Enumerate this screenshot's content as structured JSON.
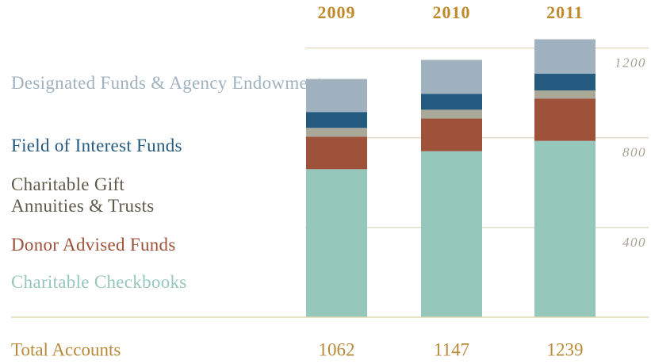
{
  "chart_data": {
    "type": "stacked_bar",
    "categories": [
      "2009",
      "2010",
      "2011"
    ],
    "series": [
      {
        "name": "Charitable Checkbooks",
        "color": "#96c7bb",
        "values": [
          660,
          740,
          786
        ]
      },
      {
        "name": "Donor Advised Funds",
        "color": "#9e5239",
        "values": [
          145,
          146,
          189
        ]
      },
      {
        "name": "Charitable Gift Annuities & Trusts",
        "color": "#a9a99a",
        "values": [
          39,
          39,
          36
        ]
      },
      {
        "name": "Field of Interest Funds",
        "color": "#255a80",
        "values": [
          71,
          71,
          75
        ]
      },
      {
        "name": "Designated Funds & Agency Endowments",
        "color": "#a0b2bf",
        "values": [
          147,
          151,
          153
        ]
      }
    ],
    "totals_label": "Total Accounts",
    "totals": [
      1062,
      1147,
      1239
    ],
    "ylim": [
      0,
      1400
    ],
    "yticks": [
      400,
      800,
      1200
    ],
    "grid": true
  }
}
